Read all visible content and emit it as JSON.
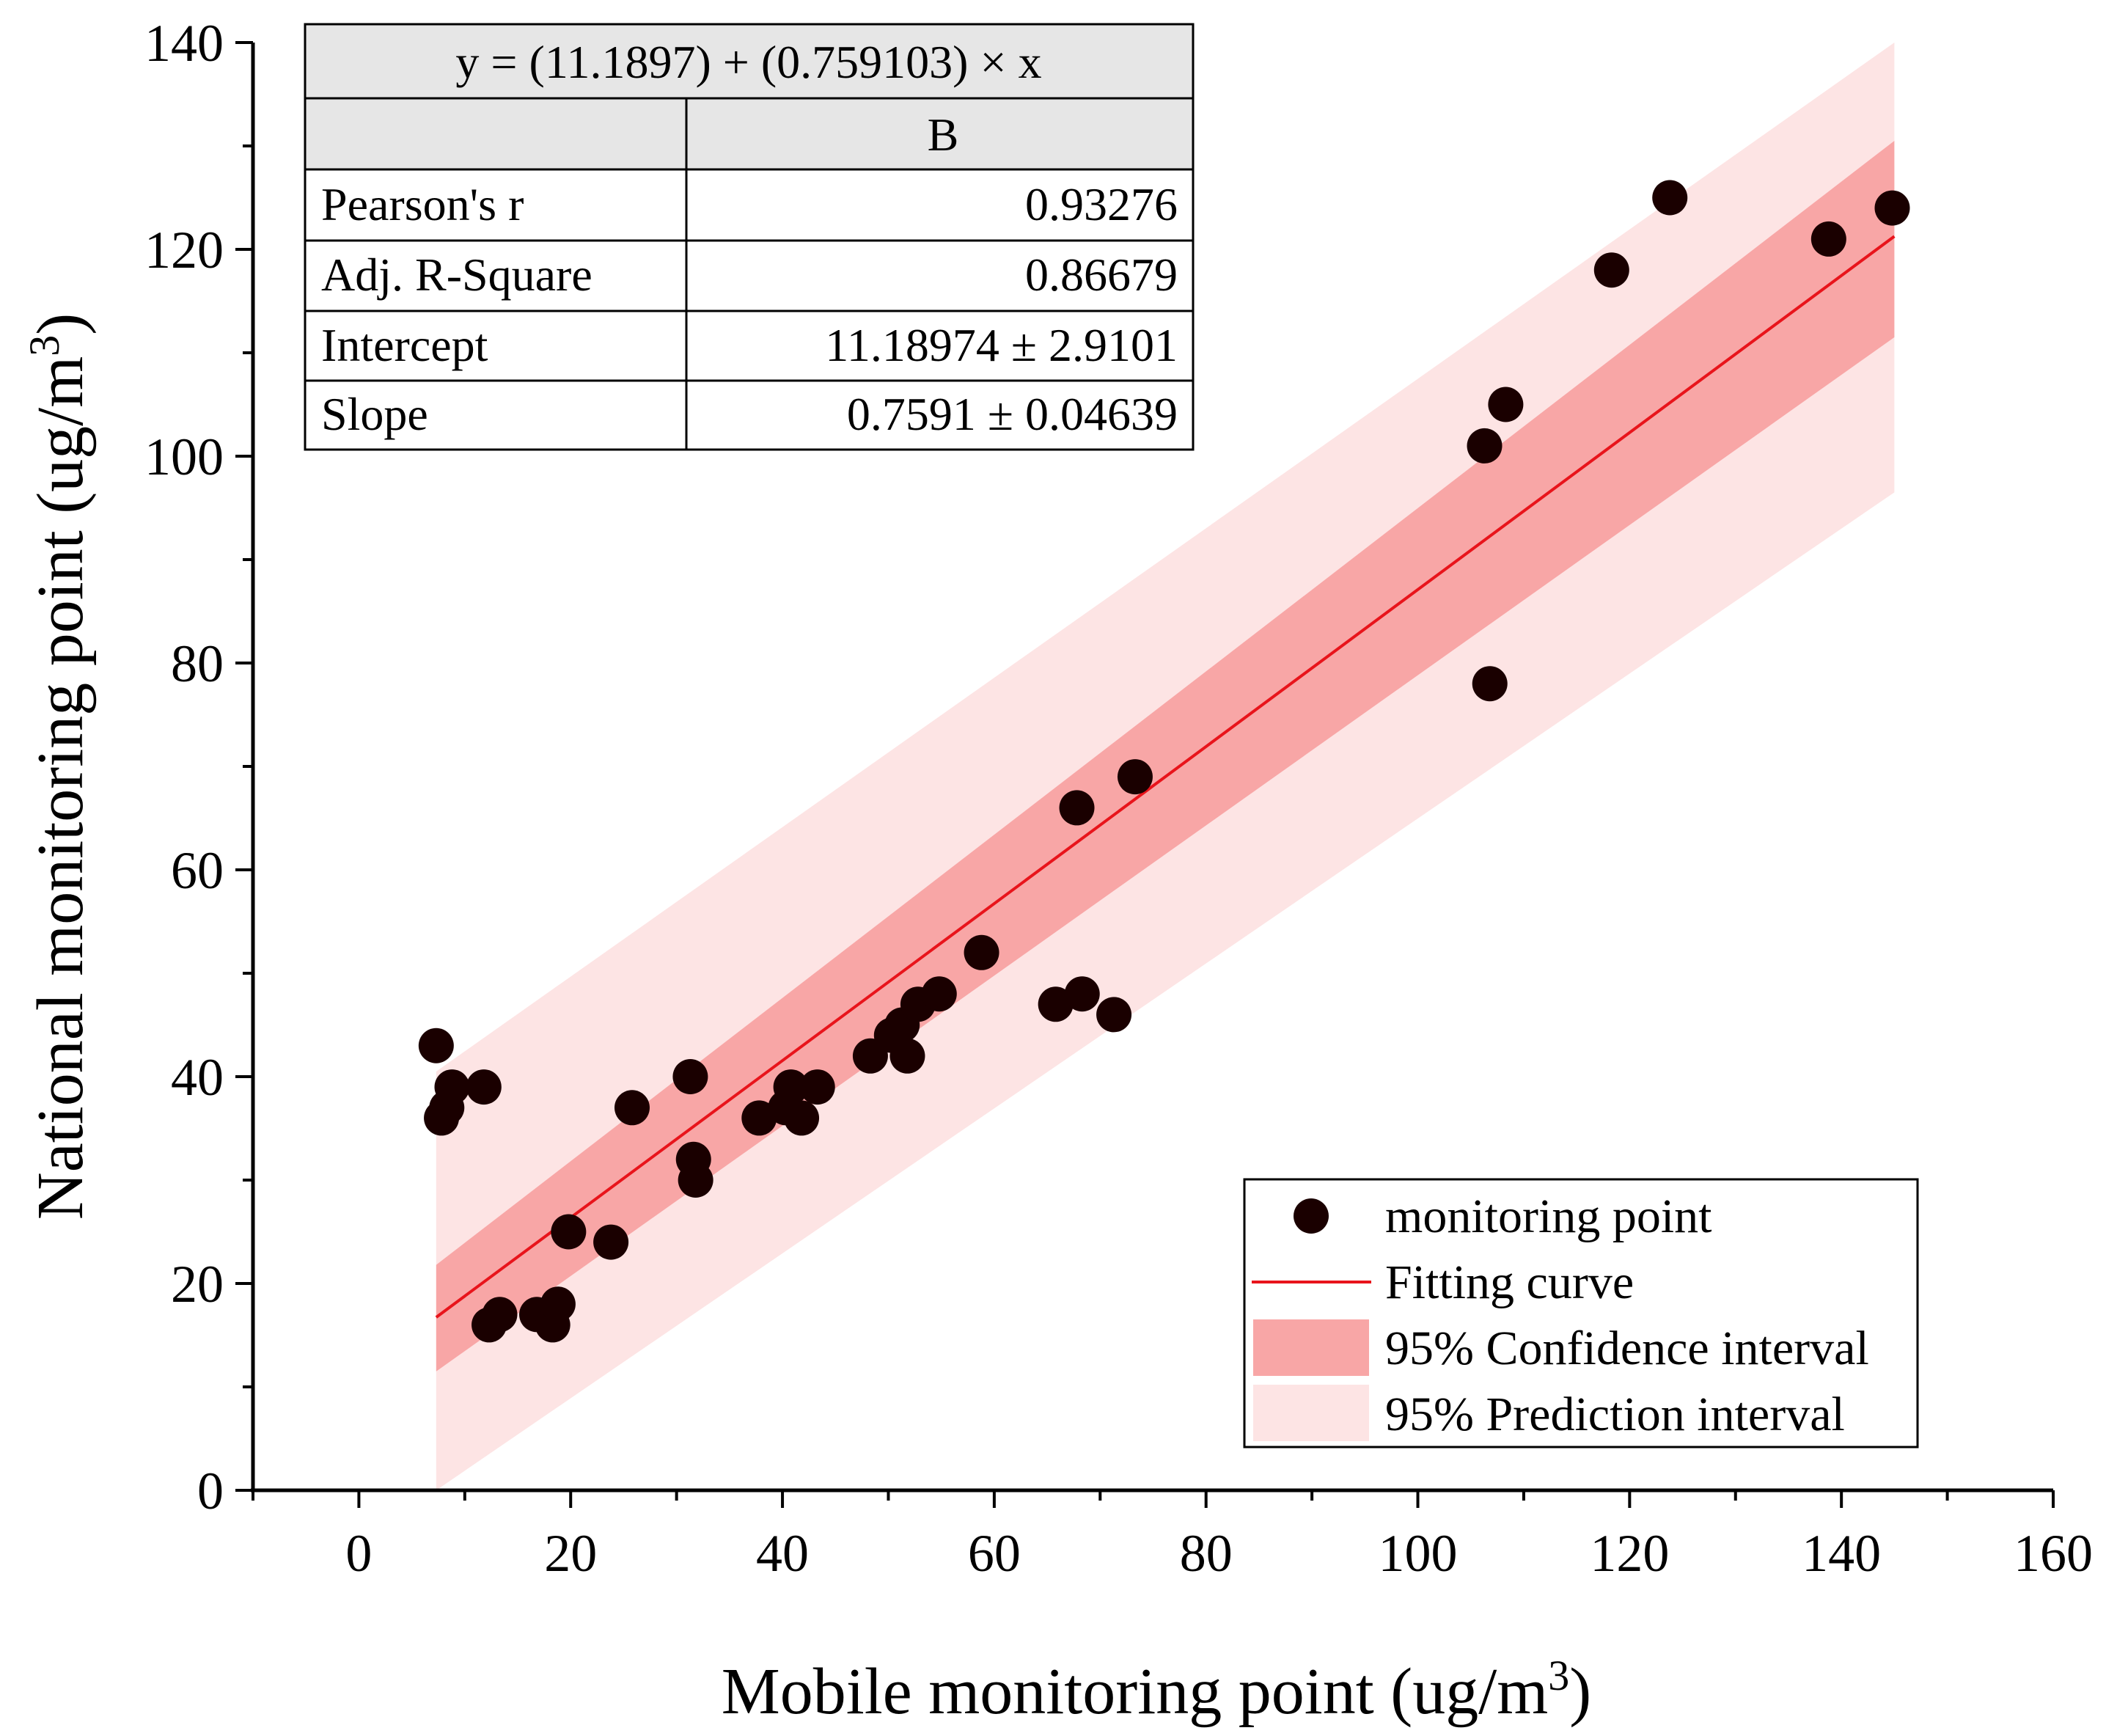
{
  "chart_data": {
    "type": "scatter",
    "title": "",
    "xlabel": "Mobile monitoring point (ug/m",
    "ylabel": "National monitoring point (ug/m",
    "axis_unit_superscript": "3",
    "axis_unit_close": ")",
    "xlim": [
      -10,
      160
    ],
    "ylim": [
      0,
      140
    ],
    "x_ticks": [
      "0",
      "20",
      "40",
      "60",
      "80",
      "100",
      "120",
      "140",
      "160"
    ],
    "y_ticks": [
      "0",
      "20",
      "40",
      "60",
      "80",
      "100",
      "120",
      "140"
    ],
    "grid": false,
    "legend_position": "bottom-right",
    "colors": {
      "points": "#1a0000",
      "fit_line": "#e8141b",
      "confidence_band": "#f8a6a6",
      "prediction_band": "#fde4e4"
    },
    "fit": {
      "intercept": 11.18974,
      "slope": 0.759103,
      "x_range": [
        7.3,
        145
      ]
    },
    "confidence_band": {
      "x": [
        7.3,
        145
      ],
      "lower": [
        11.5,
        111.5
      ],
      "upper": [
        21.8,
        130.5
      ]
    },
    "prediction_band": {
      "x": [
        7.3,
        145
      ],
      "lower": [
        -7.5,
        96.5
      ],
      "upper": [
        40.5,
        145.8
      ]
    },
    "series": [
      {
        "name": "monitoring point",
        "points": [
          [
            7.3,
            43
          ],
          [
            7.8,
            36
          ],
          [
            8.3,
            37
          ],
          [
            8.8,
            39
          ],
          [
            11.8,
            39
          ],
          [
            12.3,
            16
          ],
          [
            13.3,
            17
          ],
          [
            16.8,
            17
          ],
          [
            18.3,
            16
          ],
          [
            18.8,
            18
          ],
          [
            19.8,
            25
          ],
          [
            23.8,
            24
          ],
          [
            25.8,
            37
          ],
          [
            31.3,
            40
          ],
          [
            31.6,
            32
          ],
          [
            31.8,
            30
          ],
          [
            37.8,
            36
          ],
          [
            40.3,
            37
          ],
          [
            40.8,
            39
          ],
          [
            41.8,
            36
          ],
          [
            43.3,
            39
          ],
          [
            48.3,
            42
          ],
          [
            50.3,
            44
          ],
          [
            51.3,
            45
          ],
          [
            51.8,
            42
          ],
          [
            52.8,
            47
          ],
          [
            54.8,
            48
          ],
          [
            58.8,
            52
          ],
          [
            65.8,
            47
          ],
          [
            67.8,
            66
          ],
          [
            68.3,
            48
          ],
          [
            71.3,
            46
          ],
          [
            73.3,
            69
          ],
          [
            106.3,
            101
          ],
          [
            106.8,
            78
          ],
          [
            108.3,
            105
          ],
          [
            118.3,
            118
          ],
          [
            123.8,
            125
          ],
          [
            138.8,
            121
          ],
          [
            144.8,
            124
          ]
        ]
      }
    ],
    "stats_table": {
      "equation": "y = (11.1897) + (0.759103) × x",
      "column_header": "B",
      "rows": [
        {
          "label": "Pearson's r",
          "value": "0.93276"
        },
        {
          "label": "Adj. R-Square",
          "value": "0.86679"
        },
        {
          "label": "Intercept",
          "value": "11.18974 ± 2.9101"
        },
        {
          "label": "Slope",
          "value": "0.7591 ± 0.04639"
        }
      ]
    },
    "legend": [
      {
        "label": "monitoring point",
        "symbol": "circle"
      },
      {
        "label": "Fitting curve",
        "symbol": "line"
      },
      {
        "label": "95% Confidence interval",
        "symbol": "band-dark"
      },
      {
        "label": "95% Prediction interval",
        "symbol": "band-light"
      }
    ]
  }
}
